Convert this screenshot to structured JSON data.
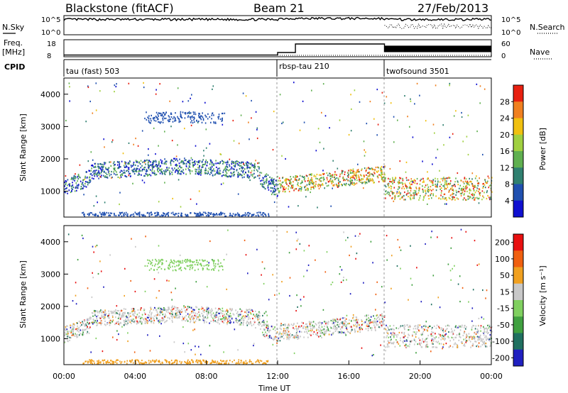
{
  "header": {
    "station": "Blackstone (fitACF)",
    "beam": "Beam 21",
    "date": "27/Feb/2013"
  },
  "left_labels": {
    "nsky": "N.Sky",
    "freq": "Freq.",
    "freq_unit": "[MHz]",
    "cpid": "CPID"
  },
  "right_labels": {
    "nsearch": "N.Search",
    "nave": "Nave"
  },
  "chart_data": [
    {
      "type": "line",
      "name": "noise",
      "left_ticks": [
        "10^5",
        "10^0"
      ],
      "right_ticks": [
        "10^5",
        "10^0"
      ],
      "series": [
        {
          "name": "N.Sky",
          "style": "solid",
          "level": 0.8
        },
        {
          "name": "N.Search",
          "style": "dotted",
          "level": 0.45
        }
      ]
    },
    {
      "type": "line",
      "name": "frequency-nave",
      "left_ticks": [
        "18",
        "8"
      ],
      "right_ticks": [
        "60",
        "0"
      ],
      "freq_steps": [
        {
          "start": 0,
          "end": 12.0,
          "value": 0.1
        },
        {
          "start": 12.0,
          "end": 13.0,
          "value": 0.25
        },
        {
          "start": 13.0,
          "end": 18.0,
          "value": 0.75
        },
        {
          "start": 18.0,
          "end": 24.0,
          "value": 0.3
        }
      ]
    },
    {
      "type": "table",
      "name": "cpid",
      "segments": [
        {
          "label": "tau (fast) 503",
          "start": 0.0
        },
        {
          "label": "rbsp-tau 210",
          "start": 12.0
        },
        {
          "label": "twofsound 3501",
          "start": 18.0
        }
      ]
    },
    {
      "type": "heatmap",
      "name": "power",
      "ylabel": "Slant Range [km]",
      "yticks": [
        1000,
        2000,
        3000,
        4000
      ],
      "ylim": [
        200,
        4500
      ],
      "colorbar_label": "Power [dB]",
      "colorbar_ticks": [
        "28",
        "24",
        "20",
        "16",
        "12",
        "8",
        "4"
      ],
      "colors": [
        "#1010d0",
        "#2050b0",
        "#308070",
        "#60b050",
        "#a0d040",
        "#f0c010",
        "#f08020",
        "#e82010"
      ]
    },
    {
      "type": "heatmap",
      "name": "velocity",
      "ylabel": "Slant Range [km]",
      "yticks": [
        1000,
        2000,
        3000,
        4000
      ],
      "ylim": [
        200,
        4500
      ],
      "xlabel": "Time UT",
      "xticks": [
        "00:00",
        "04:00",
        "08:00",
        "12:00",
        "16:00",
        "20:00",
        "00:00"
      ],
      "xlim": [
        0,
        24
      ],
      "colorbar_label": "Velocity [m s⁻¹]",
      "colorbar_ticks": [
        "200",
        "100",
        "50",
        "15",
        "-15",
        "-50",
        "-100",
        "-200"
      ],
      "colors": [
        "#2020c0",
        "#207060",
        "#40a040",
        "#80d060",
        "#c8c8c8",
        "#f0a020",
        "#f06010",
        "#e81010"
      ]
    }
  ]
}
